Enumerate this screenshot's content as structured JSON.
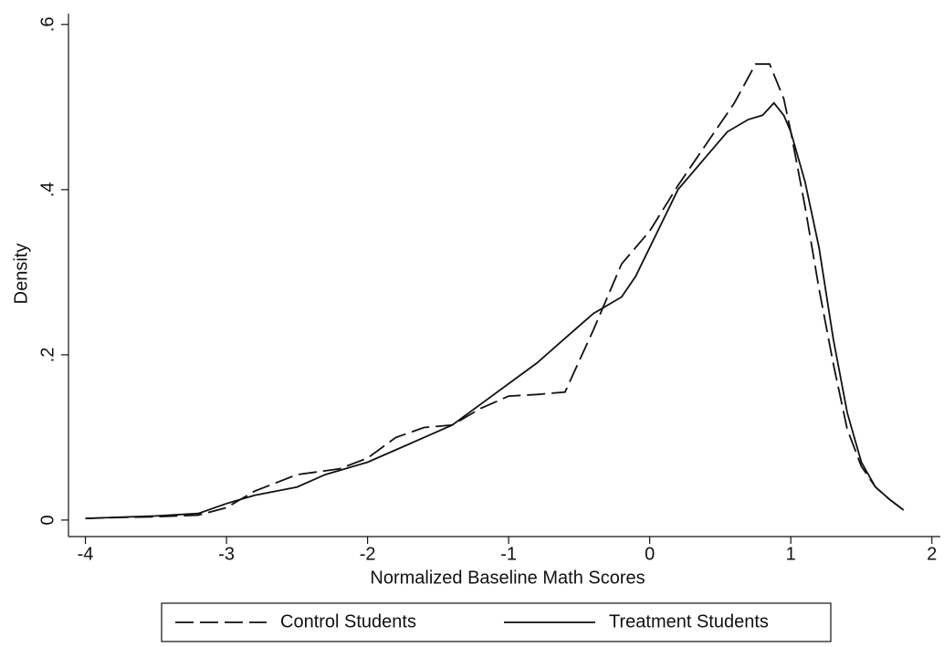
{
  "chart_data": {
    "type": "line",
    "xlabel": "Normalized Baseline Math Scores",
    "ylabel": "Density",
    "xlim": [
      -4.12,
      2.06
    ],
    "ylim": [
      -0.02,
      0.613
    ],
    "xticks": [
      -4,
      -3,
      -2,
      -1,
      0,
      1,
      2
    ],
    "yticks": [
      0,
      {
        "value": 0.2,
        "label": ".2"
      },
      {
        "value": 0.4,
        "label": ".4"
      },
      {
        "value": 0.6,
        "label": ".6"
      }
    ],
    "legend": "bottom",
    "series": [
      {
        "name": "Control Students",
        "color": "#111111",
        "dash": true,
        "x": [
          -4,
          -3.8,
          -3.5,
          -3.2,
          -3,
          -2.8,
          -2.5,
          -2.2,
          -2,
          -1.8,
          -1.6,
          -1.4,
          -1.2,
          -1,
          -0.8,
          -0.6,
          -0.4,
          -0.2,
          0,
          0.2,
          0.4,
          0.6,
          0.75,
          0.85,
          0.95,
          1,
          1.1,
          1.2,
          1.3,
          1.4,
          1.5,
          1.6,
          1.7,
          1.8
        ],
        "values": [
          0.002,
          0.003,
          0.004,
          0.006,
          0.015,
          0.035,
          0.055,
          0.062,
          0.075,
          0.1,
          0.112,
          0.115,
          0.135,
          0.15,
          0.152,
          0.155,
          0.23,
          0.31,
          0.35,
          0.405,
          0.455,
          0.505,
          0.552,
          0.552,
          0.51,
          0.47,
          0.38,
          0.28,
          0.19,
          0.11,
          0.065,
          0.04,
          0.025,
          0.012
        ]
      },
      {
        "name": "Treatment Students",
        "color": "#111111",
        "dash": false,
        "x": [
          -4,
          -3.5,
          -3.2,
          -3,
          -2.8,
          -2.5,
          -2.3,
          -2,
          -1.8,
          -1.6,
          -1.4,
          -1.2,
          -1,
          -0.8,
          -0.6,
          -0.4,
          -0.2,
          -0.1,
          0,
          0.2,
          0.4,
          0.55,
          0.7,
          0.8,
          0.88,
          0.95,
          1,
          1.1,
          1.2,
          1.3,
          1.4,
          1.5,
          1.6,
          1.7,
          1.8
        ],
        "values": [
          0.002,
          0.005,
          0.008,
          0.02,
          0.03,
          0.04,
          0.055,
          0.07,
          0.085,
          0.1,
          0.115,
          0.14,
          0.165,
          0.19,
          0.22,
          0.25,
          0.27,
          0.295,
          0.33,
          0.4,
          0.44,
          0.47,
          0.485,
          0.49,
          0.505,
          0.49,
          0.47,
          0.41,
          0.33,
          0.22,
          0.13,
          0.07,
          0.04,
          0.025,
          0.012
        ]
      }
    ]
  }
}
